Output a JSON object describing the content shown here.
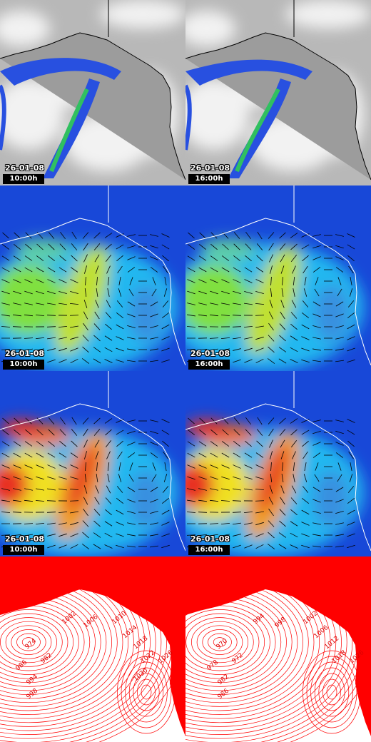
{
  "panels": [
    {
      "date": "26-01-08",
      "time": "10:00h"
    },
    {
      "date": "26-01-08",
      "time": "16:00h"
    },
    {
      "date": "26-01-08",
      "time": "10:00h"
    },
    {
      "date": "26-01-08",
      "time": "16:00h"
    },
    {
      "date": "26-01-08",
      "time": "10:00h"
    },
    {
      "date": "26-01-08",
      "time": "16:00h"
    }
  ],
  "pressure": [
    {
      "labels": [
        "974",
        "982",
        "986",
        "994",
        "998",
        "1002",
        "1006",
        "1010",
        "1014",
        "1018",
        "1022",
        "1026",
        "1030"
      ]
    },
    {
      "labels": [
        "970",
        "972",
        "978",
        "982",
        "986",
        "994",
        "998",
        "1002",
        "1006",
        "1012",
        "1018",
        "1026"
      ]
    }
  ]
}
